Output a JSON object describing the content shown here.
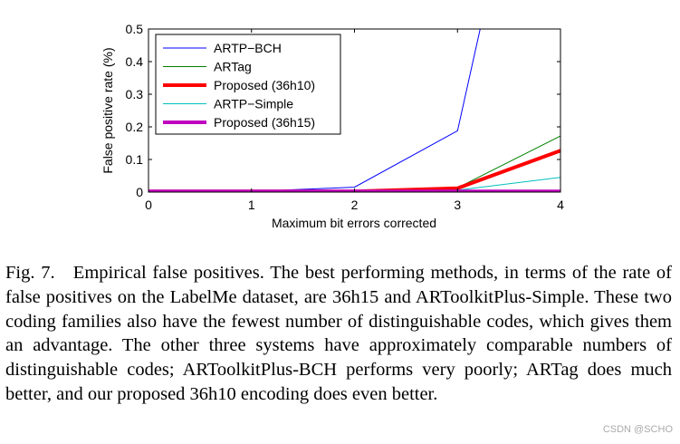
{
  "chart_data": {
    "type": "line",
    "xlabel": "Maximum bit errors corrected",
    "ylabel": "False positive rate (%)",
    "xlim": [
      0,
      4
    ],
    "ylim": [
      0,
      0.5
    ],
    "x_ticks": [
      "0",
      "1",
      "2",
      "3",
      "4"
    ],
    "y_ticks": [
      "0",
      "0.1",
      "0.2",
      "0.3",
      "0.4",
      "0.5"
    ],
    "legend_position": "top-left",
    "grid": false,
    "series": [
      {
        "name": "ARTP−BCH",
        "color": "#0000ff",
        "width": 1,
        "x": [
          0,
          1,
          2,
          3,
          3.22
        ],
        "y": [
          0.002,
          0.002,
          0.015,
          0.188,
          0.5
        ]
      },
      {
        "name": "ARTag",
        "color": "#008000",
        "width": 1,
        "x": [
          0,
          1,
          2,
          3,
          4
        ],
        "y": [
          0.002,
          0.002,
          0.002,
          0.013,
          0.172
        ]
      },
      {
        "name": "Proposed (36h10)",
        "color": "#ff0000",
        "width": 4,
        "x": [
          0,
          1,
          2,
          3,
          4
        ],
        "y": [
          0.002,
          0.002,
          0.002,
          0.012,
          0.127
        ]
      },
      {
        "name": "ARTP−Simple",
        "color": "#00bfbf",
        "width": 1,
        "x": [
          0,
          1,
          2,
          3,
          4
        ],
        "y": [
          0.002,
          0.002,
          0.002,
          0.006,
          0.045
        ]
      },
      {
        "name": "Proposed (36h15)",
        "color": "#bf00bf",
        "width": 4,
        "x": [
          0,
          1,
          2,
          3,
          4
        ],
        "y": [
          0.002,
          0.002,
          0.002,
          0.002,
          0.002
        ]
      }
    ]
  },
  "caption": "Fig. 7.   Empirical false positives. The best performing methods, in terms of the rate of false positives on the LabelMe dataset, are 36h15 and ARToolkitPlus-Simple. These two coding families also have the fewest number of distinguishable codes, which gives them an advantage. The other three systems have approximately comparable numbers of distinguishable codes; ARToolkitPlus-BCH performs very poorly; ARTag does much better, and our proposed 36h10 encoding does even better.",
  "watermark": "CSDN @SCHO"
}
